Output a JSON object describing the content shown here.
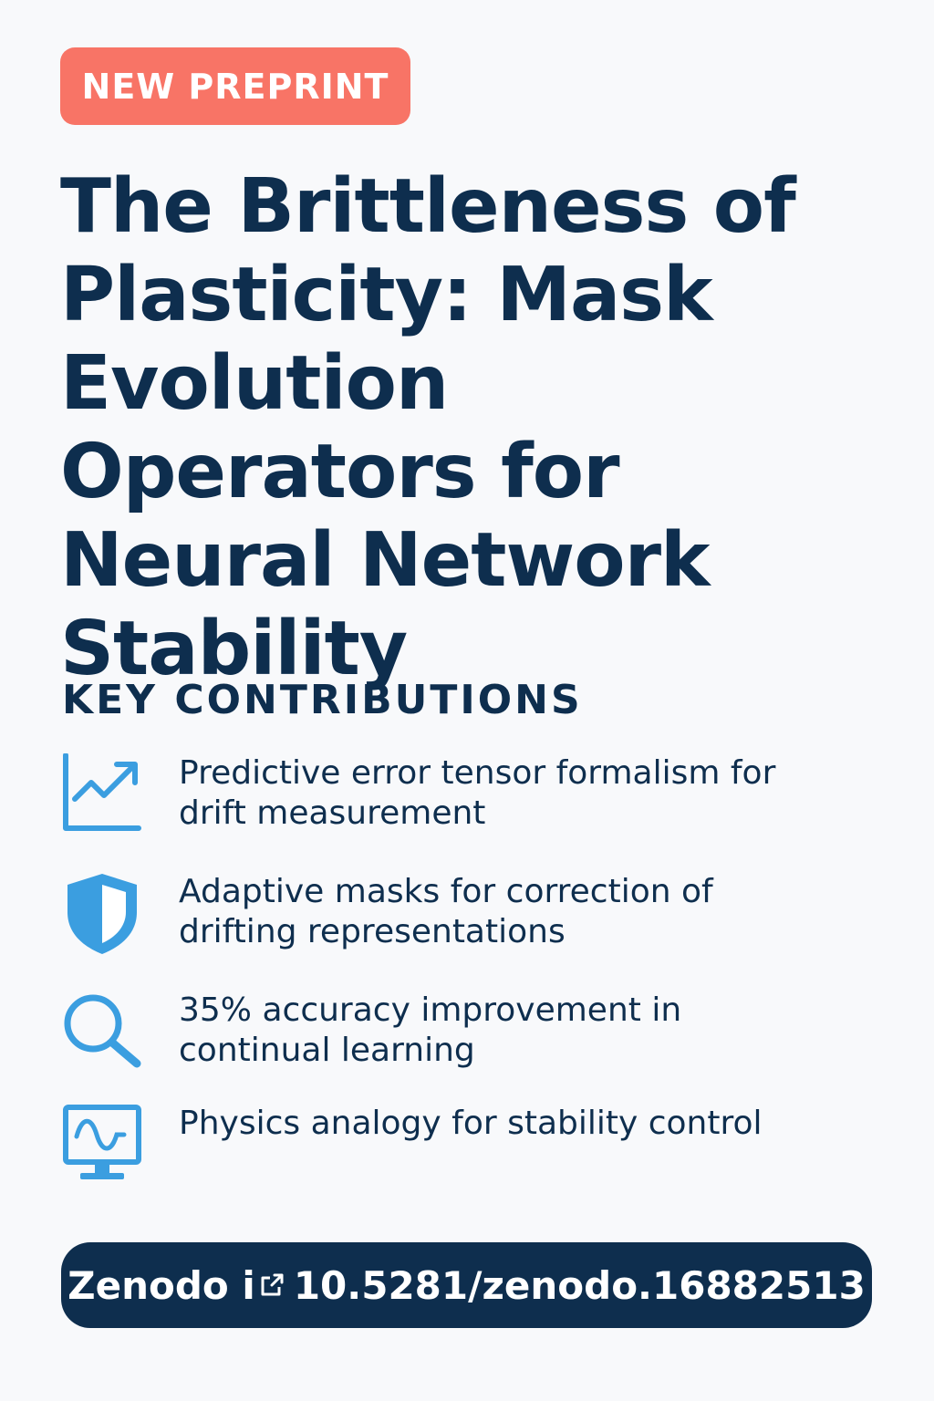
{
  "badge": {
    "label": "NEW PREPRINT"
  },
  "title": "The Brittleness of Plasticity: Mask Evolution Operators for Neural Network Stability",
  "section": {
    "heading": "KEY CONTRIBUTIONS"
  },
  "contributions": [
    {
      "icon": "trending-chart-icon",
      "text": "Predictive error tensor formalism for drift measurement"
    },
    {
      "icon": "shield-icon",
      "text": "Adaptive masks for correction of drifting representations"
    },
    {
      "icon": "search-icon",
      "text": "35% accuracy improvement in continual learning"
    },
    {
      "icon": "monitor-wave-icon",
      "text": "Physics analogy for stability control"
    }
  ],
  "doi": {
    "prefix": "Zenodo i",
    "icon": "external-link-icon",
    "value": "10.5281/zenodo.16882513"
  },
  "colors": {
    "background": "#f8f9fb",
    "badge": "#f87466",
    "navy": "#0e2e4e",
    "icon_blue": "#3b9ee0"
  }
}
